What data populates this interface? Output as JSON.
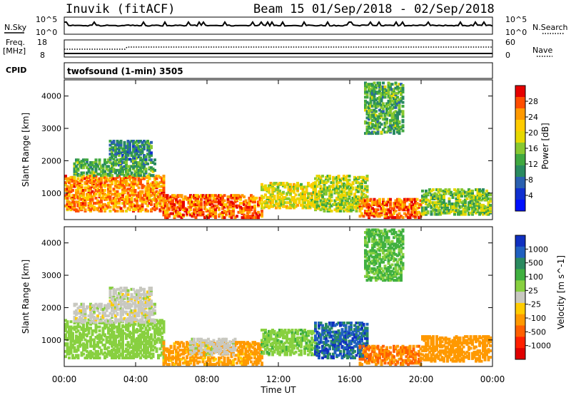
{
  "header": {
    "title": "Inuvik (fitACF)",
    "beam_date": "Beam 15  01/Sep/2018 - 02/Sep/2018"
  },
  "top_panels": {
    "nsky_label": "N.Sky",
    "nsky_ticks": [
      "10^5",
      "10^0"
    ],
    "nsearch_label": "N.Search",
    "nsearch_ticks": [
      "10^5",
      "10^0"
    ],
    "freq_label": "Freq.",
    "freq_unit": "[MHz]",
    "freq_ticks": [
      "18",
      "8"
    ],
    "nave_label": "Nave",
    "nave_ticks": [
      "60",
      "0"
    ],
    "cpid_label": "CPID",
    "cpid_text": "twofsound (1-min) 3505"
  },
  "time_axis": {
    "label": "Time UT",
    "ticks": [
      "00:00",
      "04:00",
      "08:00",
      "12:00",
      "16:00",
      "20:00",
      "00:00"
    ]
  },
  "power_colorbar": {
    "label": "Power [dB]",
    "ticks": [
      "28",
      "24",
      "20",
      "16",
      "12",
      "8",
      "4"
    ],
    "colors": [
      "#e60000",
      "#ff4d00",
      "#ff9900",
      "#ffcc00",
      "#e6d800",
      "#88c830",
      "#40a840",
      "#2a8a60",
      "#2a60b0",
      "#1030d0",
      "#0010ff"
    ]
  },
  "velocity_colorbar": {
    "label": "Velocity [m s^-1]",
    "ticks": [
      "1000",
      "500",
      "100",
      "25",
      "-25",
      "-100",
      "-500",
      "-1000"
    ],
    "colors": [
      "#1030c0",
      "#2060c0",
      "#2a8a60",
      "#40b040",
      "#88d040",
      "#c8c8c0",
      "#ffcc00",
      "#ff9900",
      "#ff6000",
      "#ff2000",
      "#e00000"
    ]
  },
  "chart_data": [
    {
      "type": "heatmap",
      "title": "Power",
      "xlabel": "",
      "ylabel": "Slant Range [km]",
      "x_range_hours": [
        0,
        24
      ],
      "ylim": [
        180,
        4500
      ],
      "y_ticks": [
        1000,
        2000,
        3000,
        4000
      ],
      "zlabel": "Power [dB]",
      "zlim": [
        0,
        30
      ],
      "regions": [
        {
          "t0": 0.0,
          "t1": 5.5,
          "r0": 400,
          "r1": 1500,
          "level": 24
        },
        {
          "t0": 0.5,
          "t1": 5.0,
          "r0": 1500,
          "r1": 2000,
          "level": 12
        },
        {
          "t0": 2.5,
          "t1": 4.8,
          "r0": 2000,
          "r1": 2600,
          "level": 9
        },
        {
          "t0": 5.5,
          "t1": 11.0,
          "r0": 200,
          "r1": 900,
          "level": 26
        },
        {
          "t0": 11.0,
          "t1": 14.0,
          "r0": 500,
          "r1": 1300,
          "level": 18
        },
        {
          "t0": 14.0,
          "t1": 17.0,
          "r0": 400,
          "r1": 1500,
          "level": 16
        },
        {
          "t0": 16.5,
          "t1": 20.0,
          "r0": 200,
          "r1": 800,
          "level": 26
        },
        {
          "t0": 20.0,
          "t1": 24.0,
          "r0": 300,
          "r1": 1100,
          "level": 14
        },
        {
          "t0": 16.8,
          "t1": 19.0,
          "r0": 2800,
          "r1": 4400,
          "level": 12
        }
      ]
    },
    {
      "type": "heatmap",
      "title": "Velocity",
      "xlabel": "Time UT",
      "ylabel": "Slant Range [km]",
      "x_range_hours": [
        0,
        24
      ],
      "ylim": [
        180,
        4500
      ],
      "y_ticks": [
        1000,
        2000,
        3000,
        4000
      ],
      "zlabel": "Velocity [m s^-1]",
      "zlim": [
        -1000,
        1000
      ],
      "regions": [
        {
          "t0": 0.0,
          "t1": 5.5,
          "r0": 400,
          "r1": 1600,
          "level": 60
        },
        {
          "t0": 0.5,
          "t1": 5.0,
          "r0": 1500,
          "r1": 2100,
          "level": 0
        },
        {
          "t0": 2.5,
          "t1": 4.8,
          "r0": 2000,
          "r1": 2600,
          "level": 0
        },
        {
          "t0": 5.5,
          "t1": 11.0,
          "r0": 200,
          "r1": 900,
          "level": -150
        },
        {
          "t0": 7.0,
          "t1": 9.5,
          "r0": 500,
          "r1": 1000,
          "level": 0
        },
        {
          "t0": 11.0,
          "t1": 14.0,
          "r0": 500,
          "r1": 1300,
          "level": 80
        },
        {
          "t0": 14.0,
          "t1": 17.0,
          "r0": 400,
          "r1": 1500,
          "level": 600
        },
        {
          "t0": 16.5,
          "t1": 20.0,
          "r0": 200,
          "r1": 800,
          "level": -300
        },
        {
          "t0": 20.0,
          "t1": 24.0,
          "r0": 300,
          "r1": 1100,
          "level": -200
        },
        {
          "t0": 16.8,
          "t1": 19.0,
          "r0": 2800,
          "r1": 4400,
          "level": 120
        }
      ]
    }
  ]
}
